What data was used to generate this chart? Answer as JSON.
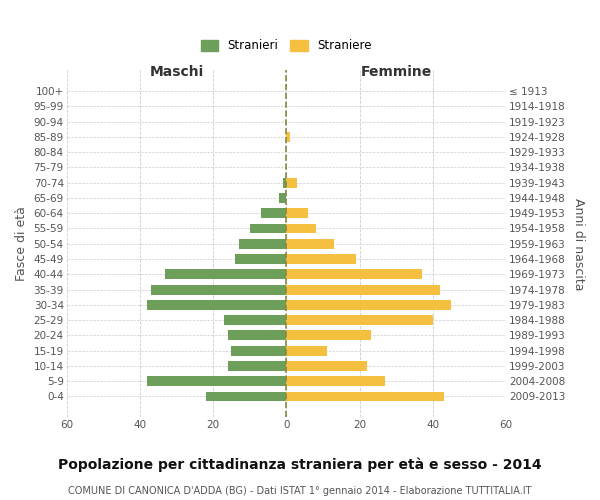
{
  "age_groups": [
    "100+",
    "95-99",
    "90-94",
    "85-89",
    "80-84",
    "75-79",
    "70-74",
    "65-69",
    "60-64",
    "55-59",
    "50-54",
    "45-49",
    "40-44",
    "35-39",
    "30-34",
    "25-29",
    "20-24",
    "15-19",
    "10-14",
    "5-9",
    "0-4"
  ],
  "birth_years": [
    "≤ 1913",
    "1914-1918",
    "1919-1923",
    "1924-1928",
    "1929-1933",
    "1934-1938",
    "1939-1943",
    "1944-1948",
    "1949-1953",
    "1954-1958",
    "1959-1963",
    "1964-1968",
    "1969-1973",
    "1974-1978",
    "1979-1983",
    "1984-1988",
    "1989-1993",
    "1994-1998",
    "1999-2003",
    "2004-2008",
    "2009-2013"
  ],
  "males": [
    0,
    0,
    0,
    0,
    0,
    0,
    1,
    2,
    7,
    10,
    13,
    14,
    33,
    37,
    38,
    17,
    16,
    15,
    16,
    38,
    22
  ],
  "females": [
    0,
    0,
    0,
    1,
    0,
    0,
    3,
    0,
    6,
    8,
    13,
    19,
    37,
    42,
    45,
    40,
    23,
    11,
    22,
    27,
    43
  ],
  "male_color": "#6d9e5a",
  "female_color": "#f5c040",
  "title": "Popolazione per cittadinanza straniera per età e sesso - 2014",
  "subtitle": "COMUNE DI CANONICA D'ADDA (BG) - Dati ISTAT 1° gennaio 2014 - Elaborazione TUTTITALIA.IT",
  "xlabel_left": "Maschi",
  "xlabel_right": "Femmine",
  "ylabel_left": "Fasce di età",
  "ylabel_right": "Anni di nascita",
  "legend_male": "Stranieri",
  "legend_female": "Straniere",
  "xlim": 60,
  "background_color": "#ffffff",
  "grid_color": "#cccccc",
  "dashed_line_color": "#888844",
  "title_fontsize": 10,
  "subtitle_fontsize": 7,
  "tick_fontsize": 7.5,
  "label_fontsize": 9
}
